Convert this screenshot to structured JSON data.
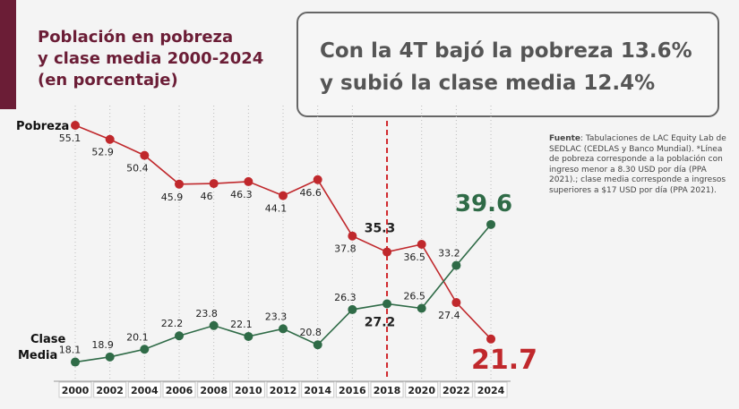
{
  "title": "Población en pobreza\ny clase media 2000-2024\n(en porcentaje)",
  "callout": "Con la 4T bajó la pobreza 13.6%\ny subió la clase media 12.4%",
  "note": {
    "label": "Fuente",
    "text": ": Tabulaciones de LAC Equity Lab de SEDLAC (CEDLAS y Banco Mundial). *Línea de pobreza corresponde a la población con ingreso menor a 8.30 USD por día (PPA 2021).; clase media corresponde a ingresos superiores a $17 USD por día (PPA 2021)."
  },
  "chart_data": {
    "type": "line",
    "title": "Población en pobreza y clase media 2000-2024 (en porcentaje)",
    "x": [
      "2000",
      "2002",
      "2004",
      "2006",
      "2008",
      "2010",
      "2012",
      "2014",
      "2016",
      "2018",
      "2020",
      "2022",
      "2024"
    ],
    "series": [
      {
        "name": "Pobreza",
        "color": "#c0282c",
        "values": [
          55.1,
          52.9,
          50.4,
          45.9,
          46,
          46.3,
          44.1,
          46.6,
          37.8,
          35.3,
          36.5,
          27.4,
          21.7
        ]
      },
      {
        "name": "Clase\nMedia",
        "color": "#2f6b47",
        "values": [
          18.1,
          18.9,
          20.1,
          22.2,
          23.8,
          22.1,
          23.3,
          20.8,
          26.3,
          27.2,
          26.5,
          33.2,
          39.6
        ]
      }
    ],
    "highlight_year": "2018",
    "grid": "vertical dotted"
  },
  "colors": {
    "brand": "#6b1d36",
    "pobreza": "#c0282c",
    "clase_media": "#2f6b47"
  }
}
